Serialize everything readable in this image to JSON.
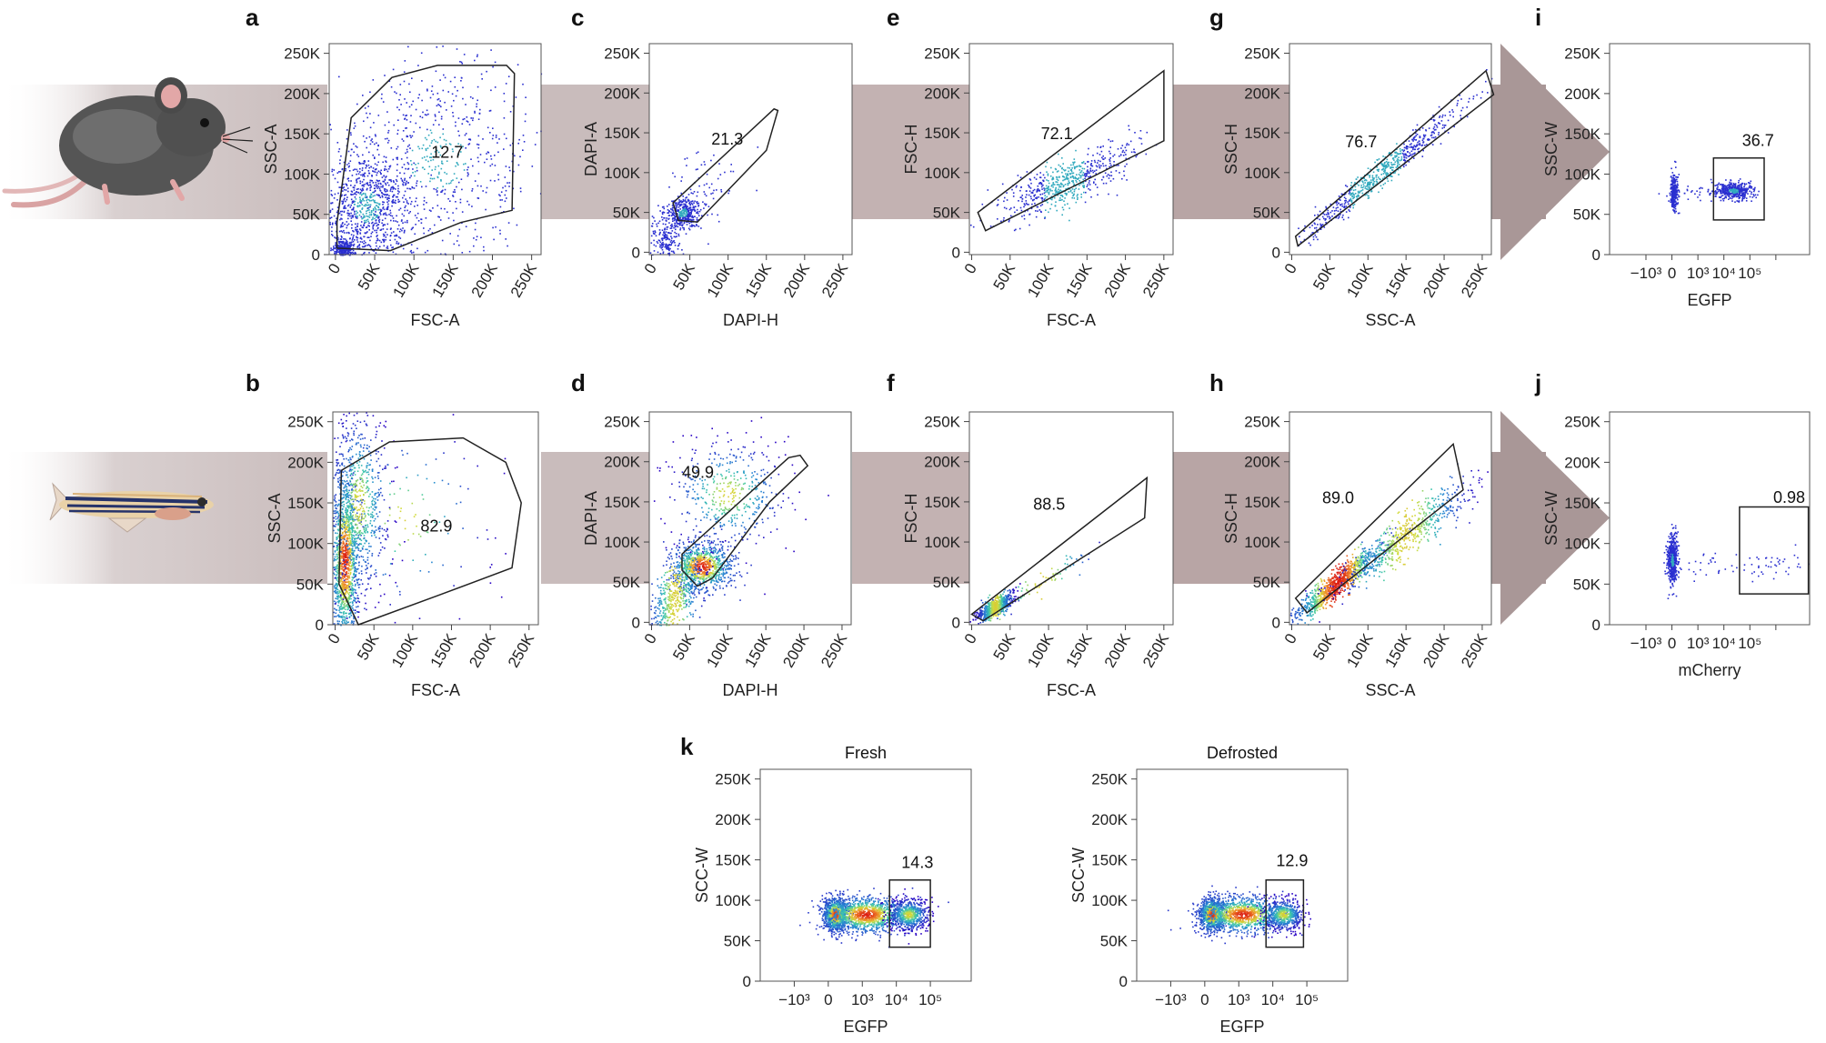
{
  "figure": {
    "arrow_color": "#c9bcbc",
    "arrow_dark_color": "#a99797",
    "frame_color": "#555555",
    "gate_color": "#222222",
    "rows": [
      {
        "organism": "mouse",
        "icon": "mouse-icon"
      },
      {
        "organism": "zebrafish",
        "icon": "zebrafish-icon"
      }
    ]
  },
  "chart_data": [
    {
      "id": "a",
      "panel_label": "a",
      "type": "scatter",
      "density_style": "sparse",
      "xlabel": "FSC-A",
      "ylabel": "SSC-A",
      "xscale": "linear",
      "xlim": [
        -8000,
        262000
      ],
      "ylim": [
        0,
        262000
      ],
      "xticks": [
        0,
        50000,
        100000,
        150000,
        200000,
        250000
      ],
      "xtick_labels": [
        "0",
        "50K",
        "100K",
        "150K",
        "200K",
        "250K"
      ],
      "yticks": [
        0,
        50000,
        100000,
        150000,
        200000,
        250000
      ],
      "ytick_labels": [
        "0",
        "50K",
        "100K",
        "150K",
        "200K",
        "250K"
      ],
      "gate_value": "12.7",
      "gate_value_at": [
        122000,
        120000
      ],
      "gate": [
        [
          2000,
          8000
        ],
        [
          2000,
          40000
        ],
        [
          20000,
          170000
        ],
        [
          72000,
          220000
        ],
        [
          130000,
          235000
        ],
        [
          218000,
          235000
        ],
        [
          228000,
          225000
        ],
        [
          225000,
          55000
        ],
        [
          160000,
          40000
        ],
        [
          70000,
          5000
        ]
      ],
      "clusters": [
        {
          "cx": 40000,
          "cy": 60000,
          "sx": 30000,
          "sy": 35000,
          "n": 900
        },
        {
          "cx": 10000,
          "cy": 8000,
          "sx": 7000,
          "sy": 6000,
          "n": 260
        },
        {
          "cx": 130000,
          "cy": 120000,
          "sx": 65000,
          "sy": 65000,
          "n": 700
        }
      ]
    },
    {
      "id": "c",
      "panel_label": "c",
      "type": "scatter",
      "density_style": "sparse",
      "xlabel": "DAPI-H",
      "ylabel": "DAPI-A",
      "xscale": "linear",
      "xlim": [
        -3000,
        262000
      ],
      "ylim": [
        -3000,
        262000
      ],
      "xticks": [
        0,
        50000,
        100000,
        150000,
        200000,
        250000
      ],
      "xtick_labels": [
        "0",
        "50K",
        "100K",
        "150K",
        "200K",
        "250K"
      ],
      "yticks": [
        0,
        50000,
        100000,
        150000,
        200000,
        250000
      ],
      "ytick_labels": [
        "0",
        "50K",
        "100K",
        "150K",
        "200K",
        "250K"
      ],
      "gate_value": "21.3",
      "gate_value_at": [
        78000,
        135000
      ],
      "gate": [
        [
          35000,
          40000
        ],
        [
          28000,
          62000
        ],
        [
          160000,
          180000
        ],
        [
          165000,
          178000
        ],
        [
          150000,
          128000
        ],
        [
          60000,
          38000
        ]
      ],
      "clusters": [
        {
          "cx": 40000,
          "cy": 50000,
          "sx": 12000,
          "sy": 10000,
          "n": 400
        },
        {
          "cx": 15000,
          "cy": 15000,
          "sx": 10000,
          "sy": 12000,
          "n": 180
        },
        {
          "cx": 70000,
          "cy": 80000,
          "sx": 25000,
          "sy": 25000,
          "n": 60
        }
      ]
    },
    {
      "id": "e",
      "panel_label": "e",
      "type": "scatter",
      "density_style": "sparse",
      "xlabel": "FSC-A",
      "ylabel": "FSC-H",
      "xscale": "linear",
      "xlim": [
        -3000,
        262000
      ],
      "ylim": [
        -3000,
        262000
      ],
      "xticks": [
        0,
        50000,
        100000,
        150000,
        200000,
        250000
      ],
      "xtick_labels": [
        "0",
        "50K",
        "100K",
        "150K",
        "200K",
        "250K"
      ],
      "yticks": [
        0,
        50000,
        100000,
        150000,
        200000,
        250000
      ],
      "ytick_labels": [
        "0",
        "50K",
        "100K",
        "150K",
        "200K",
        "250K"
      ],
      "gate_value": "72.1",
      "gate_value_at": [
        90000,
        142000
      ],
      "gate": [
        [
          8000,
          50000
        ],
        [
          18000,
          27000
        ],
        [
          250000,
          140000
        ],
        [
          250000,
          228000
        ]
      ],
      "clusters": [
        {
          "cx": 120000,
          "cy": 88000,
          "sx": 45000,
          "sy": 15000,
          "n": 600,
          "slope": 0.4
        }
      ]
    },
    {
      "id": "g",
      "panel_label": "g",
      "type": "scatter",
      "density_style": "sparse",
      "xlabel": "SSC-A",
      "ylabel": "SSC-H",
      "xscale": "linear",
      "xlim": [
        -3000,
        262000
      ],
      "ylim": [
        -3000,
        262000
      ],
      "xticks": [
        0,
        50000,
        100000,
        150000,
        200000,
        250000
      ],
      "xtick_labels": [
        "0",
        "50K",
        "100K",
        "150K",
        "200K",
        "250K"
      ],
      "yticks": [
        0,
        50000,
        100000,
        150000,
        200000,
        250000
      ],
      "ytick_labels": [
        "0",
        "50K",
        "100K",
        "150K",
        "200K",
        "250K"
      ],
      "gate_value": "76.7",
      "gate_value_at": [
        70000,
        132000
      ],
      "gate": [
        [
          5000,
          20000
        ],
        [
          8000,
          8000
        ],
        [
          265000,
          198000
        ],
        [
          255000,
          228000
        ]
      ],
      "clusters": [
        {
          "cx": 110000,
          "cy": 95000,
          "sx": 60000,
          "sy": 9000,
          "n": 650,
          "slope": 0.78
        }
      ]
    },
    {
      "id": "i",
      "panel_label": "i",
      "type": "scatter",
      "density_style": "sparse",
      "xlabel": "EGFP",
      "ylabel": "SSC-W",
      "xscale": "biexp",
      "xlim": [
        -2.4,
        5.3
      ],
      "ylim": [
        0,
        262000
      ],
      "xticks": [
        -1,
        0,
        1,
        2,
        3,
        4
      ],
      "xtick_labels": [
        "−10³",
        "0",
        "10³",
        "10⁴",
        "10⁵",
        ""
      ],
      "yticks": [
        0,
        50000,
        100000,
        150000,
        200000,
        250000
      ],
      "ytick_labels": [
        "0",
        "50K",
        "100K",
        "150K",
        "200K",
        "250K"
      ],
      "gate_value": "36.7",
      "gate_value_at": [
        2.7,
        135000
      ],
      "gate": [
        [
          1.6,
          43000
        ],
        [
          1.6,
          120000
        ],
        [
          3.55,
          120000
        ],
        [
          3.55,
          43000
        ]
      ],
      "clusters": [
        {
          "cx": 0.05,
          "cy": 78000,
          "sx": 0.07,
          "sy": 12000,
          "n": 300
        },
        {
          "cx": 2.35,
          "cy": 80000,
          "sx": 0.35,
          "sy": 5500,
          "n": 420
        },
        {
          "cx": 1.0,
          "cy": 78000,
          "sx": 0.6,
          "sy": 5000,
          "n": 40
        }
      ]
    },
    {
      "id": "b",
      "panel_label": "b",
      "type": "scatter",
      "density_style": "dense",
      "xlabel": "FSC-A",
      "ylabel": "SSC-A",
      "xscale": "linear",
      "xlim": [
        -3000,
        262000
      ],
      "ylim": [
        0,
        262000
      ],
      "xticks": [
        0,
        50000,
        100000,
        150000,
        200000,
        250000
      ],
      "xtick_labels": [
        "0",
        "50K",
        "100K",
        "150K",
        "200K",
        "250K"
      ],
      "yticks": [
        0,
        50000,
        100000,
        150000,
        200000,
        250000
      ],
      "ytick_labels": [
        "0",
        "50K",
        "100K",
        "150K",
        "200K",
        "250K"
      ],
      "gate_value": "82.9",
      "gate_value_at": [
        110000,
        115000
      ],
      "gate": [
        [
          5000,
          50000
        ],
        [
          8000,
          190000
        ],
        [
          70000,
          225000
        ],
        [
          165000,
          230000
        ],
        [
          220000,
          200000
        ],
        [
          240000,
          150000
        ],
        [
          228000,
          70000
        ],
        [
          130000,
          35000
        ],
        [
          30000,
          0
        ]
      ],
      "clusters": [
        {
          "cx": 12000,
          "cy": 80000,
          "sx": 9000,
          "sy": 55000,
          "n": 1300
        },
        {
          "cx": 30000,
          "cy": 150000,
          "sx": 20000,
          "sy": 60000,
          "n": 700
        },
        {
          "cx": 90000,
          "cy": 130000,
          "sx": 55000,
          "sy": 60000,
          "n": 120
        }
      ]
    },
    {
      "id": "d",
      "panel_label": "d",
      "type": "scatter",
      "density_style": "dense",
      "xlabel": "DAPI-H",
      "ylabel": "DAPI-A",
      "xscale": "linear",
      "xlim": [
        -3000,
        262000
      ],
      "ylim": [
        -3000,
        262000
      ],
      "xticks": [
        0,
        50000,
        100000,
        150000,
        200000,
        250000
      ],
      "xtick_labels": [
        "0",
        "50K",
        "100K",
        "150K",
        "200K",
        "250K"
      ],
      "yticks": [
        0,
        50000,
        100000,
        150000,
        200000,
        250000
      ],
      "ytick_labels": [
        "0",
        "50K",
        "100K",
        "150K",
        "200K",
        "250K"
      ],
      "gate_value": "49.9",
      "gate_value_at": [
        40000,
        180000
      ],
      "gate": [
        [
          40000,
          65000
        ],
        [
          60000,
          45000
        ],
        [
          80000,
          55000
        ],
        [
          155000,
          150000
        ],
        [
          205000,
          195000
        ],
        [
          195000,
          208000
        ],
        [
          180000,
          205000
        ],
        [
          40000,
          85000
        ]
      ],
      "clusters": [
        {
          "cx": 65000,
          "cy": 70000,
          "sx": 20000,
          "sy": 15000,
          "n": 900
        },
        {
          "cx": 30000,
          "cy": 30000,
          "sx": 20000,
          "sy": 20000,
          "n": 500,
          "slope": 1.0
        },
        {
          "cx": 100000,
          "cy": 160000,
          "sx": 40000,
          "sy": 35000,
          "n": 450
        }
      ]
    },
    {
      "id": "f",
      "panel_label": "f",
      "type": "scatter",
      "density_style": "dense",
      "xlabel": "FSC-A",
      "ylabel": "FSC-H",
      "xscale": "linear",
      "xlim": [
        -3000,
        262000
      ],
      "ylim": [
        -3000,
        262000
      ],
      "xticks": [
        0,
        50000,
        100000,
        150000,
        200000,
        250000
      ],
      "xtick_labels": [
        "0",
        "50K",
        "100K",
        "150K",
        "200K",
        "250K"
      ],
      "yticks": [
        0,
        50000,
        100000,
        150000,
        200000,
        250000
      ],
      "ytick_labels": [
        "0",
        "50K",
        "100K",
        "150K",
        "200K",
        "250K"
      ],
      "gate_value": "88.5",
      "gate_value_at": [
        80000,
        140000
      ],
      "gate": [
        [
          0,
          10000
        ],
        [
          15000,
          2000
        ],
        [
          225000,
          130000
        ],
        [
          228000,
          180000
        ]
      ],
      "clusters": [
        {
          "cx": 30000,
          "cy": 20000,
          "sx": 12000,
          "sy": 6000,
          "n": 600,
          "slope": 0.5
        },
        {
          "cx": 90000,
          "cy": 50000,
          "sx": 40000,
          "sy": 7000,
          "n": 70,
          "slope": 0.55
        }
      ]
    },
    {
      "id": "h",
      "panel_label": "h",
      "type": "scatter",
      "density_style": "dense",
      "xlabel": "SSC-A",
      "ylabel": "SSC-H",
      "xscale": "linear",
      "xlim": [
        -3000,
        262000
      ],
      "ylim": [
        -3000,
        262000
      ],
      "xticks": [
        0,
        50000,
        100000,
        150000,
        200000,
        250000
      ],
      "xtick_labels": [
        "0",
        "50K",
        "100K",
        "150K",
        "200K",
        "250K"
      ],
      "yticks": [
        0,
        50000,
        100000,
        150000,
        200000,
        250000
      ],
      "ytick_labels": [
        "0",
        "50K",
        "100K",
        "150K",
        "200K",
        "250K"
      ],
      "gate_value": "89.0",
      "gate_value_at": [
        40000,
        148000
      ],
      "gate": [
        [
          5000,
          30000
        ],
        [
          20000,
          12000
        ],
        [
          225000,
          165000
        ],
        [
          212000,
          222000
        ]
      ],
      "clusters": [
        {
          "cx": 60000,
          "cy": 50000,
          "sx": 28000,
          "sy": 9000,
          "n": 1000,
          "slope": 0.75
        },
        {
          "cx": 150000,
          "cy": 110000,
          "sx": 45000,
          "sy": 14000,
          "n": 600,
          "slope": 0.7
        }
      ]
    },
    {
      "id": "j",
      "panel_label": "j",
      "type": "scatter",
      "density_style": "sparse",
      "xlabel": "mCherry",
      "ylabel": "SSC-W",
      "xscale": "biexp",
      "xlim": [
        -2.4,
        5.3
      ],
      "ylim": [
        0,
        262000
      ],
      "xticks": [
        -1,
        0,
        1,
        2,
        3,
        4
      ],
      "xtick_labels": [
        "−10³",
        "0",
        "10³",
        "10⁴",
        "10⁵",
        ""
      ],
      "yticks": [
        0,
        50000,
        100000,
        150000,
        200000,
        250000
      ],
      "ytick_labels": [
        "0",
        "50K",
        "100K",
        "150K",
        "200K",
        "250K"
      ],
      "gate_value": "0.98",
      "gate_value_at": [
        3.9,
        150000
      ],
      "gate": [
        [
          2.6,
          38000
        ],
        [
          2.6,
          145000
        ],
        [
          5.25,
          145000
        ],
        [
          5.25,
          38000
        ]
      ],
      "clusters": [
        {
          "cx": 0.0,
          "cy": 80000,
          "sx": 0.1,
          "sy": 15000,
          "n": 500
        },
        {
          "cx": 3.8,
          "cy": 75000,
          "sx": 0.8,
          "sy": 8000,
          "n": 45
        },
        {
          "cx": 1.4,
          "cy": 76000,
          "sx": 0.6,
          "sy": 8000,
          "n": 25
        }
      ]
    },
    {
      "id": "k1",
      "panel_label": "k",
      "panel_title": "Fresh",
      "type": "scatter",
      "density_style": "dense",
      "xlabel": "EGFP",
      "ylabel": "SCC-W",
      "xscale": "biexp",
      "xlim": [
        -2.0,
        4.2
      ],
      "ylim": [
        0,
        262000
      ],
      "xticks": [
        -1,
        0,
        1,
        2,
        3
      ],
      "xtick_labels": [
        "−10³",
        "0",
        "10³",
        "10⁴",
        "10⁵"
      ],
      "yticks": [
        0,
        50000,
        100000,
        150000,
        200000,
        250000
      ],
      "ytick_labels": [
        "0",
        "50K",
        "100K",
        "150K",
        "200K",
        "250K"
      ],
      "gate_value": "14.3",
      "gate_value_at": [
        2.15,
        140000
      ],
      "gate": [
        [
          1.8,
          42000
        ],
        [
          1.8,
          125000
        ],
        [
          3.0,
          125000
        ],
        [
          3.0,
          42000
        ]
      ],
      "clusters": [
        {
          "cx": 0.2,
          "cy": 83000,
          "sx": 0.18,
          "sy": 10000,
          "n": 900
        },
        {
          "cx": 1.1,
          "cy": 83000,
          "sx": 0.6,
          "sy": 11000,
          "n": 1100
        },
        {
          "cx": 2.35,
          "cy": 83000,
          "sx": 0.3,
          "sy": 10000,
          "n": 600
        }
      ]
    },
    {
      "id": "k2",
      "panel_label": "",
      "panel_title": "Defrosted",
      "type": "scatter",
      "density_style": "dense",
      "xlabel": "EGFP",
      "ylabel": "SCC-W",
      "xscale": "biexp",
      "xlim": [
        -2.0,
        4.2
      ],
      "ylim": [
        0,
        262000
      ],
      "xticks": [
        -1,
        0,
        1,
        2,
        3
      ],
      "xtick_labels": [
        "−10³",
        "0",
        "10³",
        "10⁴",
        "10⁵"
      ],
      "yticks": [
        0,
        50000,
        100000,
        150000,
        200000,
        250000
      ],
      "ytick_labels": [
        "0",
        "50K",
        "100K",
        "150K",
        "200K",
        "250K"
      ],
      "gate_value": "12.9",
      "gate_value_at": [
        2.1,
        142000
      ],
      "gate": [
        [
          1.8,
          42000
        ],
        [
          1.8,
          125000
        ],
        [
          2.9,
          125000
        ],
        [
          2.9,
          42000
        ]
      ],
      "clusters": [
        {
          "cx": 0.2,
          "cy": 83000,
          "sx": 0.18,
          "sy": 10000,
          "n": 900
        },
        {
          "cx": 1.1,
          "cy": 83000,
          "sx": 0.6,
          "sy": 11000,
          "n": 1100
        },
        {
          "cx": 2.3,
          "cy": 83000,
          "sx": 0.3,
          "sy": 10000,
          "n": 550
        }
      ]
    }
  ]
}
